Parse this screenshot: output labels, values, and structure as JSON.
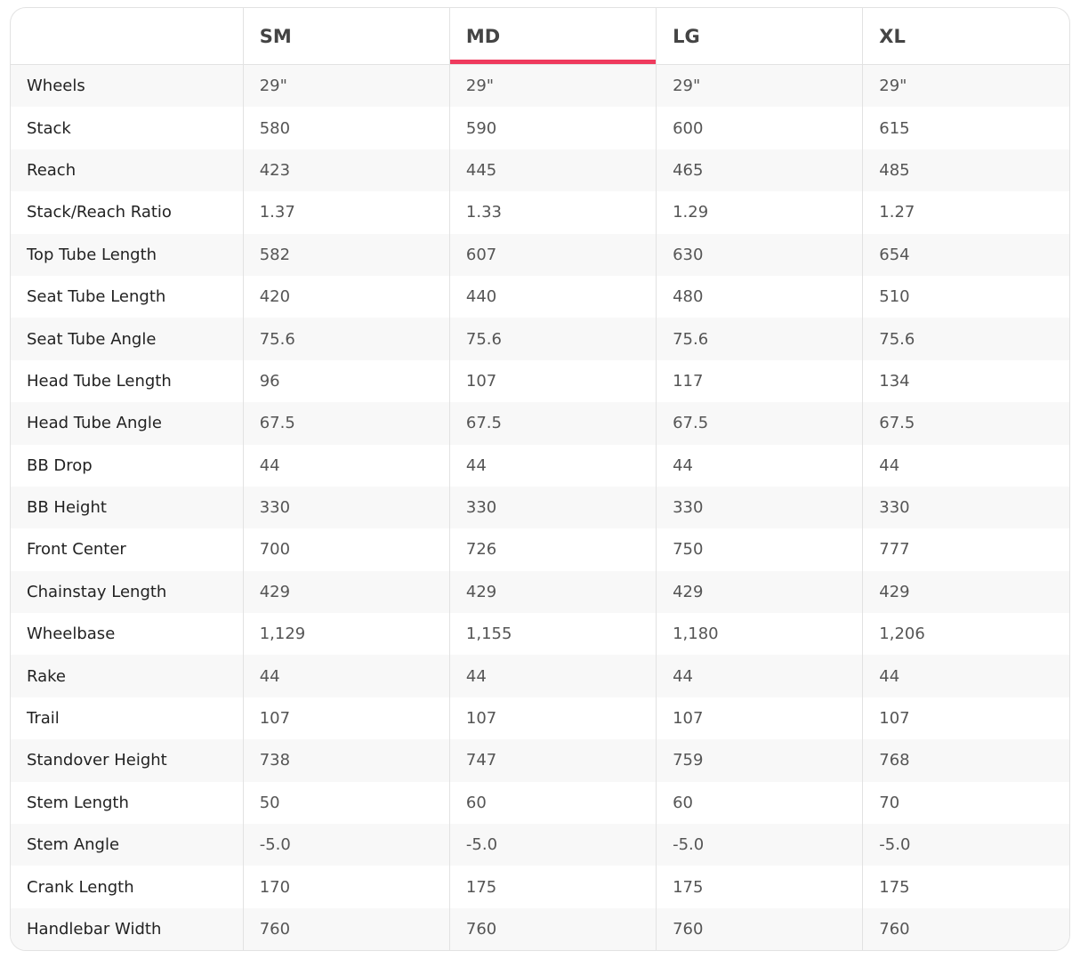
{
  "columns": [
    "",
    "SM",
    "MD",
    "LG",
    "XL"
  ],
  "active_column": "MD",
  "accent_color": "#ef3a5d",
  "rows": [
    {
      "label": "Wheels",
      "values": [
        "29\"",
        "29\"",
        "29\"",
        "29\""
      ]
    },
    {
      "label": "Stack",
      "values": [
        "580",
        "590",
        "600",
        "615"
      ]
    },
    {
      "label": "Reach",
      "values": [
        "423",
        "445",
        "465",
        "485"
      ]
    },
    {
      "label": "Stack/Reach Ratio",
      "values": [
        "1.37",
        "1.33",
        "1.29",
        "1.27"
      ]
    },
    {
      "label": "Top Tube Length",
      "values": [
        "582",
        "607",
        "630",
        "654"
      ]
    },
    {
      "label": "Seat Tube Length",
      "values": [
        "420",
        "440",
        "480",
        "510"
      ]
    },
    {
      "label": "Seat Tube Angle",
      "values": [
        "75.6",
        "75.6",
        "75.6",
        "75.6"
      ]
    },
    {
      "label": "Head Tube Length",
      "values": [
        "96",
        "107",
        "117",
        "134"
      ]
    },
    {
      "label": "Head Tube Angle",
      "values": [
        "67.5",
        "67.5",
        "67.5",
        "67.5"
      ]
    },
    {
      "label": "BB Drop",
      "values": [
        "44",
        "44",
        "44",
        "44"
      ]
    },
    {
      "label": "BB Height",
      "values": [
        "330",
        "330",
        "330",
        "330"
      ]
    },
    {
      "label": "Front Center",
      "values": [
        "700",
        "726",
        "750",
        "777"
      ]
    },
    {
      "label": "Chainstay Length",
      "values": [
        "429",
        "429",
        "429",
        "429"
      ]
    },
    {
      "label": "Wheelbase",
      "values": [
        "1,129",
        "1,155",
        "1,180",
        "1,206"
      ]
    },
    {
      "label": "Rake",
      "values": [
        "44",
        "44",
        "44",
        "44"
      ]
    },
    {
      "label": "Trail",
      "values": [
        "107",
        "107",
        "107",
        "107"
      ]
    },
    {
      "label": "Standover Height",
      "values": [
        "738",
        "747",
        "759",
        "768"
      ]
    },
    {
      "label": "Stem Length",
      "values": [
        "50",
        "60",
        "60",
        "70"
      ]
    },
    {
      "label": "Stem Angle",
      "values": [
        "-5.0",
        "-5.0",
        "-5.0",
        "-5.0"
      ]
    },
    {
      "label": "Crank Length",
      "values": [
        "170",
        "175",
        "175",
        "175"
      ]
    },
    {
      "label": "Handlebar Width",
      "values": [
        "760",
        "760",
        "760",
        "760"
      ]
    }
  ]
}
